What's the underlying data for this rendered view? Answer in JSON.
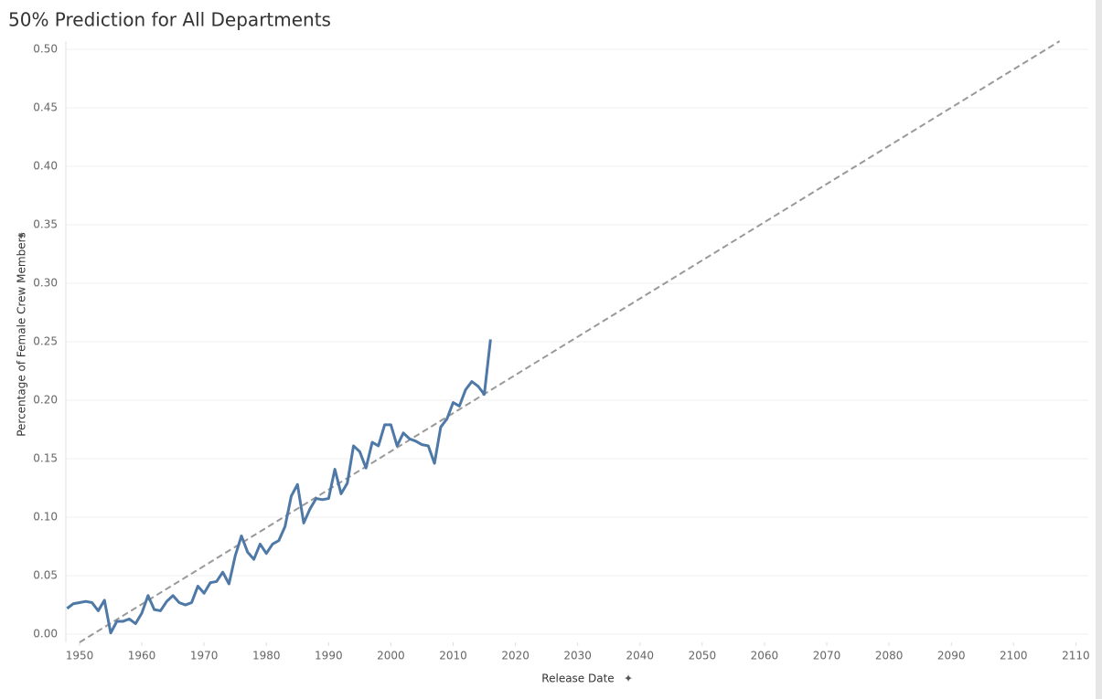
{
  "chart_data": {
    "type": "line",
    "title": "50% Prediction for All Departments",
    "x_label": "Release Date",
    "y_label": "Percentage of Female Crew Members",
    "xlim": [
      1947.8,
      2112
    ],
    "ylim": [
      -0.007,
      0.507
    ],
    "xticks": [
      1950,
      1960,
      1970,
      1980,
      1990,
      2000,
      2010,
      2020,
      2030,
      2040,
      2050,
      2060,
      2070,
      2080,
      2090,
      2100,
      2110
    ],
    "yticks": [
      {
        "value": 0,
        "label": "0.00"
      },
      {
        "value": 0.05,
        "label": "0.05"
      },
      {
        "value": 0.1,
        "label": "0.10"
      },
      {
        "value": 0.15,
        "label": "0.15"
      },
      {
        "value": 0.2,
        "label": "0.20"
      },
      {
        "value": 0.25,
        "label": "0.25"
      },
      {
        "value": 0.3,
        "label": "0.30"
      },
      {
        "value": 0.35,
        "label": "0.35"
      },
      {
        "value": 0.4,
        "label": "0.40"
      },
      {
        "value": 0.45,
        "label": "0.45"
      },
      {
        "value": 0.5,
        "label": "0.50"
      }
    ],
    "grid": true,
    "x": [
      1948,
      1949,
      1950,
      1951,
      1952,
      1953,
      1954,
      1955,
      1956,
      1957,
      1958,
      1959,
      1960,
      1961,
      1962,
      1963,
      1964,
      1965,
      1966,
      1967,
      1968,
      1969,
      1970,
      1971,
      1972,
      1973,
      1974,
      1975,
      1976,
      1977,
      1978,
      1979,
      1980,
      1981,
      1982,
      1983,
      1984,
      1985,
      1986,
      1987,
      1988,
      1989,
      1990,
      1991,
      1992,
      1993,
      1994,
      1995,
      1996,
      1997,
      1998,
      1999,
      2000,
      2001,
      2002,
      2003,
      2004,
      2005,
      2006,
      2007,
      2008,
      2009,
      2010,
      2011,
      2012,
      2013,
      2014,
      2015,
      2016
    ],
    "series": [
      {
        "color": "#4e79a7",
        "values": [
          0.022,
          0.026,
          0.027,
          0.028,
          0.027,
          0.02,
          0.029,
          0.001,
          0.011,
          0.011,
          0.013,
          0.009,
          0.018,
          0.033,
          0.021,
          0.02,
          0.028,
          0.033,
          0.027,
          0.025,
          0.027,
          0.041,
          0.035,
          0.044,
          0.045,
          0.053,
          0.043,
          0.067,
          0.084,
          0.07,
          0.064,
          0.077,
          0.069,
          0.077,
          0.08,
          0.092,
          0.118,
          0.128,
          0.095,
          0.107,
          0.116,
          0.115,
          0.116,
          0.141,
          0.12,
          0.129,
          0.161,
          0.156,
          0.142,
          0.164,
          0.161,
          0.179,
          0.179,
          0.161,
          0.172,
          0.167,
          0.165,
          0.162,
          0.161,
          0.146,
          0.177,
          0.184,
          0.198,
          0.195,
          0.209,
          0.216,
          0.212,
          0.205,
          0.252
        ]
      }
    ],
    "trend": {
      "color": "#999999",
      "x": [
        1950,
        2107.4
      ],
      "values": [
        -0.007,
        0.507
      ]
    }
  }
}
